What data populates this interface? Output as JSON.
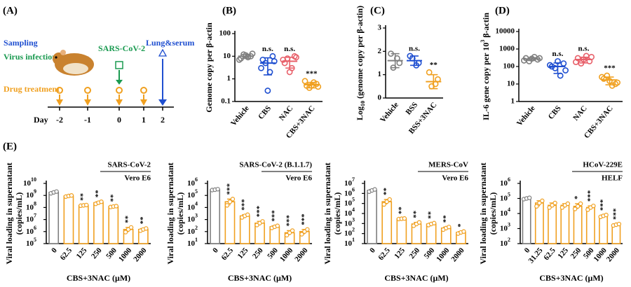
{
  "diagram": {
    "panel": "(A)",
    "sampling": "Sampling",
    "virus_infection": "Virus infection",
    "drug_treatment": "Drug treatment",
    "virus": "SARS-CoV-2",
    "endpoint": "Lung&serum",
    "day": "Day",
    "days": [
      "-2",
      "-1",
      "0",
      "1",
      "2"
    ]
  },
  "chart_data": [
    {
      "panel": "(B)",
      "type": "dot",
      "log": true,
      "ylabel": [
        "Genome copy per β-actin"
      ],
      "categories": [
        "Vehicle",
        "CBS",
        "NAC",
        "CBS+3NAC"
      ],
      "colors": [
        "#7f7f7f",
        "#1f4fd0",
        "#e8606a",
        "#f0a020"
      ],
      "points": [
        [
          8,
          10,
          12,
          9,
          11,
          7,
          13
        ],
        [
          7,
          10,
          5,
          2,
          0.3,
          3,
          6
        ],
        [
          5,
          10,
          8,
          3,
          2,
          7,
          9
        ],
        [
          0.5,
          0.6,
          0.4,
          0.7,
          0.5,
          0.8,
          0.45
        ]
      ],
      "means": [
        10,
        5,
        6,
        0.55
      ],
      "sds": [
        2,
        3.5,
        3,
        0.15
      ],
      "annotations": [
        null,
        "n.s.",
        "n.s.",
        "***"
      ],
      "ylim": [
        0.1,
        100
      ],
      "yticks": [
        0.1,
        1,
        10,
        100
      ]
    },
    {
      "panel": "(C)",
      "type": "dot",
      "log": false,
      "ylabel": [
        "Log",
        "10",
        " (genome copy per β-actin)"
      ],
      "ylabel_script": "sub",
      "categories": [
        "Vehicle",
        "BSS",
        "BSS+3NAC"
      ],
      "colors": [
        "#7f7f7f",
        "#1f4fd0",
        "#f0a020"
      ],
      "points": [
        [
          1.9,
          1.5,
          1.3,
          1.7
        ],
        [
          1.8,
          1.5,
          1.7,
          1.4
        ],
        [
          1.1,
          0.8,
          0.5,
          0.6
        ]
      ],
      "means": [
        1.6,
        1.6,
        0.7
      ],
      "sds": [
        0.3,
        0.2,
        0.3
      ],
      "annotations": [
        null,
        "n.s.",
        "**"
      ],
      "ylim": [
        0,
        3
      ],
      "yticks": [
        0,
        1,
        2,
        3
      ]
    },
    {
      "panel": "(D)",
      "type": "dot",
      "log": true,
      "ylabel": [
        "IL-6 gene copy per 10",
        "3",
        " β-actin"
      ],
      "ylabel_script": "super",
      "categories": [
        "Vehicle",
        "CBS",
        "NAC",
        "CBS+3NAC"
      ],
      "colors": [
        "#7f7f7f",
        "#1f4fd0",
        "#e8606a",
        "#f0a020"
      ],
      "points": [
        [
          300,
          250,
          200,
          350,
          280,
          220,
          300
        ],
        [
          100,
          150,
          80,
          30,
          200,
          120,
          60
        ],
        [
          300,
          200,
          150,
          400,
          250,
          180,
          350
        ],
        [
          20,
          10,
          30,
          8,
          15,
          25,
          12
        ]
      ],
      "means": [
        270,
        100,
        250,
        17
      ],
      "sds": [
        50,
        60,
        90,
        8
      ],
      "annotations": [
        null,
        "n.s.",
        "n.s.",
        "***"
      ],
      "ylim": [
        1,
        10000
      ],
      "yticks": [
        1,
        10,
        100,
        1000,
        10000
      ]
    },
    {
      "panel": "(E)",
      "type": "bar",
      "log": true,
      "title": "SARS-CoV-2",
      "subtitle": "Vero E6",
      "ylabel": [
        "Viral loading in supernatant",
        "(copies/mL)"
      ],
      "xlabel": "CBS+3NAC (μM)",
      "color": "#f0a020",
      "control_color": "#7f7f7f",
      "categories": [
        "0",
        "62.5",
        "125",
        "250",
        "500",
        "1000",
        "2000"
      ],
      "values": [
        1800000000,
        900000000,
        150000000,
        250000000,
        120000000,
        1500000,
        1500000
      ],
      "points": [
        [
          1500000000,
          1800000000,
          2100000000
        ],
        [
          800000000,
          900000000,
          1000000000
        ],
        [
          140000000,
          150000000,
          160000000
        ],
        [
          200000000,
          250000000,
          300000000
        ],
        [
          110000000,
          120000000,
          130000000
        ],
        [
          900000,
          1500000,
          2200000
        ],
        [
          1200000,
          1500000,
          1800000
        ]
      ],
      "annotations": [
        null,
        null,
        "**",
        "**",
        "**",
        "**",
        "**"
      ],
      "ylim": [
        100000,
        10000000000
      ],
      "yticks": [
        {
          "value": 100000,
          "label": "10",
          "sup": "5"
        },
        {
          "value": 1000000,
          "label": "10",
          "sup": "6"
        },
        {
          "value": 10000000,
          "label": "10",
          "sup": "7"
        },
        {
          "value": 100000000,
          "label": "10",
          "sup": "8"
        },
        {
          "value": 1000000000,
          "label": "10",
          "sup": "9"
        },
        {
          "value": 10000000000,
          "label": "10",
          "sup": "10"
        }
      ]
    },
    {
      "type": "bar",
      "log": true,
      "title": "SARS-CoV-2 (B.1.1.7)",
      "subtitle": "Vero E6",
      "ylabel": [
        "Viral loading in supernatant",
        "(copies/mL)"
      ],
      "xlabel": "CBS+3NAC (μM)",
      "color": "#f0a020",
      "control_color": "#7f7f7f",
      "categories": [
        "0",
        "62.5",
        "125",
        "250",
        "500",
        "1000",
        "2000"
      ],
      "values": [
        300000,
        30000,
        2000,
        500,
        250,
        80,
        100
      ],
      "points": [
        [
          280000,
          300000,
          330000
        ],
        [
          15000,
          30000,
          50000
        ],
        [
          1500,
          2000,
          2500
        ],
        [
          350,
          500,
          700
        ],
        [
          200,
          250,
          300
        ],
        [
          50,
          80,
          120
        ],
        [
          60,
          100,
          150
        ]
      ],
      "annotations": [
        null,
        "***",
        "***",
        "***",
        "***",
        "***",
        "***"
      ],
      "ylim": [
        10,
        1000000
      ],
      "yticks": [
        {
          "value": 10,
          "label": "10",
          "sup": "1"
        },
        {
          "value": 100,
          "label": "10",
          "sup": "2"
        },
        {
          "value": 1000,
          "label": "10",
          "sup": "3"
        },
        {
          "value": 10000,
          "label": "10",
          "sup": "4"
        },
        {
          "value": 100000,
          "label": "10",
          "sup": "5"
        },
        {
          "value": 1000000,
          "label": "10",
          "sup": "6"
        }
      ]
    },
    {
      "type": "bar",
      "log": true,
      "title": "MERS-CoV",
      "subtitle": "Vero E6",
      "ylabel": [
        "Viral loading in supernatant",
        "(copies/mL)"
      ],
      "xlabel": "CBS+3NAC (μM)",
      "color": "#f0a020",
      "control_color": "#7f7f7f",
      "categories": [
        "0",
        "62.5",
        "125",
        "250",
        "500",
        "1000",
        "2000"
      ],
      "values": [
        2000000,
        150000,
        3000,
        900,
        900,
        350,
        130
      ],
      "points": [
        [
          1500000,
          2000000,
          2500000
        ],
        [
          80000,
          150000,
          250000
        ],
        [
          2800,
          3000,
          3200
        ],
        [
          600,
          900,
          1300
        ],
        [
          700,
          900,
          1100
        ],
        [
          250,
          350,
          450
        ],
        [
          100,
          130,
          160
        ]
      ],
      "annotations": [
        null,
        "**",
        "**",
        "**",
        "**",
        "**",
        "*"
      ],
      "ylim": [
        10,
        10000000
      ],
      "yticks": [
        {
          "value": 10,
          "label": "10",
          "sup": "1"
        },
        {
          "value": 100,
          "label": "10",
          "sup": "2"
        },
        {
          "value": 1000,
          "label": "10",
          "sup": "3"
        },
        {
          "value": 10000,
          "label": "10",
          "sup": "4"
        },
        {
          "value": 100000,
          "label": "10",
          "sup": "5"
        },
        {
          "value": 1000000,
          "label": "10",
          "sup": "6"
        },
        {
          "value": 10000000,
          "label": "10",
          "sup": "7"
        }
      ]
    },
    {
      "type": "bar",
      "log": true,
      "title": "HCoV-229E",
      "subtitle": "HELF",
      "ylabel": [
        "Viral loading in supernatant",
        "(copies/mL)"
      ],
      "xlabel": "CBS+3NAC (μM)",
      "color": "#f0a020",
      "control_color": "#7f7f7f",
      "categories": [
        "0",
        "31.25",
        "62.5",
        "125",
        "250",
        "500",
        "1000",
        "2000"
      ],
      "values": [
        100000,
        50000,
        35000,
        35000,
        30000,
        25000,
        7000,
        1800
      ],
      "points": [
        [
          90000,
          100000,
          110000
        ],
        [
          30000,
          50000,
          70000
        ],
        [
          25000,
          35000,
          50000
        ],
        [
          25000,
          35000,
          45000
        ],
        [
          20000,
          30000,
          45000
        ],
        [
          18000,
          25000,
          32000
        ],
        [
          6000,
          7000,
          8000
        ],
        [
          1600,
          1800,
          2000
        ]
      ],
      "annotations": [
        null,
        null,
        null,
        null,
        "*",
        "***",
        "***",
        "***"
      ],
      "ylim": [
        100,
        1000000
      ],
      "yticks": [
        {
          "value": 100,
          "label": "10",
          "sup": "2"
        },
        {
          "value": 1000,
          "label": "10",
          "sup": "3"
        },
        {
          "value": 10000,
          "label": "10",
          "sup": "4"
        },
        {
          "value": 100000,
          "label": "10",
          "sup": "5"
        },
        {
          "value": 1000000,
          "label": "10",
          "sup": "6"
        }
      ]
    }
  ]
}
